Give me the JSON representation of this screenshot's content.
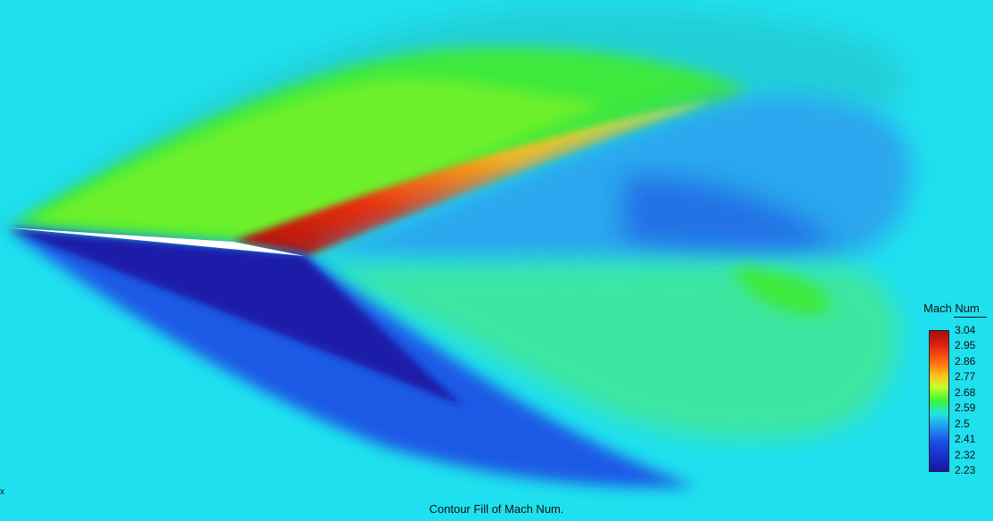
{
  "caption": "Contour Fill of Mach Num.",
  "legend": {
    "title": "Mach Num",
    "ticks": [
      "3.04",
      "2.95",
      "2.86",
      "2.77",
      "2.68",
      "2.59",
      "2.5",
      "2.41",
      "2.32",
      "2.23"
    ]
  },
  "axis_marker": "x",
  "colors": {
    "background": "#1fe0ef",
    "max": "#a60d0d",
    "min": "#1414a8"
  }
}
